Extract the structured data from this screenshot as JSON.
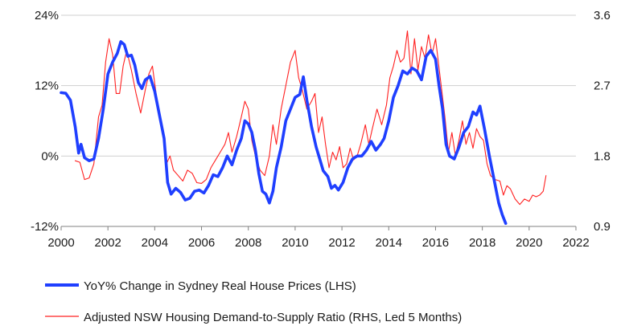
{
  "chart_data": {
    "type": "line",
    "title": "",
    "xlabel": "",
    "ylabel_left": "",
    "ylabel_right": "",
    "x_ticks": [
      "2000",
      "2002",
      "2004",
      "2006",
      "2008",
      "2010",
      "2012",
      "2014",
      "2016",
      "2018",
      "2020",
      "2022"
    ],
    "x_range": [
      2000,
      2022
    ],
    "y_left": {
      "ticks": [
        "24%",
        "12%",
        "0%",
        "-12%"
      ],
      "tick_values": [
        24,
        12,
        0,
        -12
      ],
      "range": [
        -12,
        24
      ]
    },
    "y_right": {
      "ticks": [
        "3.6",
        "2.7",
        "1.8",
        "0.9"
      ],
      "tick_values": [
        3.6,
        2.7,
        1.8,
        0.9
      ],
      "range": [
        0.9,
        3.6
      ]
    },
    "grid": "horizontal",
    "legend_position": "bottom-left",
    "series": [
      {
        "name": "YoY% Change in Sydney Real House Prices (LHS)",
        "axis": "left",
        "color": "#1f3fff",
        "points": [
          [
            2000.0,
            10.8
          ],
          [
            2000.2,
            10.7
          ],
          [
            2000.4,
            9.5
          ],
          [
            2000.6,
            5.0
          ],
          [
            2000.75,
            0.5
          ],
          [
            2000.85,
            2.0
          ],
          [
            2001.0,
            -0.3
          ],
          [
            2001.2,
            -0.8
          ],
          [
            2001.4,
            -0.5
          ],
          [
            2001.6,
            3.0
          ],
          [
            2001.8,
            8.0
          ],
          [
            2002.0,
            14.0
          ],
          [
            2002.2,
            16.0
          ],
          [
            2002.4,
            17.5
          ],
          [
            2002.55,
            19.5
          ],
          [
            2002.7,
            19.0
          ],
          [
            2002.85,
            17.0
          ],
          [
            2003.0,
            17.2
          ],
          [
            2003.15,
            15.5
          ],
          [
            2003.3,
            12.5
          ],
          [
            2003.45,
            11.5
          ],
          [
            2003.6,
            13.0
          ],
          [
            2003.8,
            13.6
          ],
          [
            2004.0,
            11.0
          ],
          [
            2004.2,
            7.0
          ],
          [
            2004.4,
            3.0
          ],
          [
            2004.55,
            -4.5
          ],
          [
            2004.7,
            -6.5
          ],
          [
            2004.9,
            -5.5
          ],
          [
            2005.1,
            -6.2
          ],
          [
            2005.3,
            -7.5
          ],
          [
            2005.5,
            -7.2
          ],
          [
            2005.7,
            -6.0
          ],
          [
            2005.9,
            -5.8
          ],
          [
            2006.1,
            -6.3
          ],
          [
            2006.3,
            -5.0
          ],
          [
            2006.5,
            -3.2
          ],
          [
            2006.7,
            -3.5
          ],
          [
            2006.9,
            -2.0
          ],
          [
            2007.1,
            0.0
          ],
          [
            2007.3,
            -1.5
          ],
          [
            2007.5,
            1.0
          ],
          [
            2007.7,
            3.0
          ],
          [
            2007.85,
            6.0
          ],
          [
            2008.0,
            5.5
          ],
          [
            2008.15,
            4.0
          ],
          [
            2008.3,
            1.0
          ],
          [
            2008.45,
            -3.0
          ],
          [
            2008.6,
            -6.0
          ],
          [
            2008.75,
            -6.5
          ],
          [
            2008.9,
            -8.0
          ],
          [
            2009.05,
            -6.0
          ],
          [
            2009.2,
            -2.0
          ],
          [
            2009.4,
            1.5
          ],
          [
            2009.6,
            6.0
          ],
          [
            2009.8,
            8.0
          ],
          [
            2010.0,
            10.0
          ],
          [
            2010.2,
            10.5
          ],
          [
            2010.35,
            13.5
          ],
          [
            2010.5,
            9.5
          ],
          [
            2010.7,
            5.0
          ],
          [
            2010.9,
            1.5
          ],
          [
            2011.05,
            -0.5
          ],
          [
            2011.2,
            -2.5
          ],
          [
            2011.4,
            -3.5
          ],
          [
            2011.55,
            -5.5
          ],
          [
            2011.7,
            -5.0
          ],
          [
            2011.85,
            -5.8
          ],
          [
            2012.05,
            -4.5
          ],
          [
            2012.25,
            -2.0
          ],
          [
            2012.45,
            -0.5
          ],
          [
            2012.65,
            0.0
          ],
          [
            2012.85,
            0.0
          ],
          [
            2013.05,
            1.0
          ],
          [
            2013.25,
            2.5
          ],
          [
            2013.45,
            1.0
          ],
          [
            2013.65,
            2.0
          ],
          [
            2013.8,
            3.0
          ],
          [
            2014.0,
            6.0
          ],
          [
            2014.2,
            10.0
          ],
          [
            2014.4,
            12.0
          ],
          [
            2014.6,
            14.5
          ],
          [
            2014.8,
            14.0
          ],
          [
            2015.0,
            15.0
          ],
          [
            2015.2,
            14.5
          ],
          [
            2015.4,
            13.0
          ],
          [
            2015.6,
            17.0
          ],
          [
            2015.8,
            18.0
          ],
          [
            2016.0,
            16.5
          ],
          [
            2016.15,
            12.0
          ],
          [
            2016.3,
            8.0
          ],
          [
            2016.45,
            2.0
          ],
          [
            2016.6,
            0.0
          ],
          [
            2016.8,
            -0.5
          ],
          [
            2017.0,
            1.5
          ],
          [
            2017.2,
            4.0
          ],
          [
            2017.4,
            5.0
          ],
          [
            2017.6,
            7.5
          ],
          [
            2017.75,
            7.0
          ],
          [
            2017.9,
            8.5
          ],
          [
            2018.1,
            4.5
          ],
          [
            2018.3,
            0.0
          ],
          [
            2018.5,
            -4.0
          ],
          [
            2018.7,
            -8.0
          ],
          [
            2018.85,
            -10.0
          ],
          [
            2019.0,
            -11.5
          ]
        ]
      },
      {
        "name": "Adjusted NSW Housing Demand-to-Supply Ratio (RHS, Led 5 Months)",
        "axis": "right",
        "color": "#ff2020",
        "points": [
          [
            2000.6,
            1.74
          ],
          [
            2000.8,
            1.72
          ],
          [
            2001.0,
            1.5
          ],
          [
            2001.2,
            1.52
          ],
          [
            2001.4,
            1.7
          ],
          [
            2001.6,
            2.3
          ],
          [
            2001.75,
            2.45
          ],
          [
            2001.9,
            3.0
          ],
          [
            2002.05,
            3.3
          ],
          [
            2002.2,
            3.1
          ],
          [
            2002.35,
            2.6
          ],
          [
            2002.5,
            2.6
          ],
          [
            2002.65,
            2.95
          ],
          [
            2002.8,
            3.15
          ],
          [
            2003.0,
            2.9
          ],
          [
            2003.2,
            2.6
          ],
          [
            2003.4,
            2.35
          ],
          [
            2003.6,
            2.65
          ],
          [
            2003.75,
            2.85
          ],
          [
            2003.9,
            2.95
          ],
          [
            2004.1,
            2.5
          ],
          [
            2004.3,
            2.2
          ],
          [
            2004.5,
            1.7
          ],
          [
            2004.65,
            1.8
          ],
          [
            2004.8,
            1.62
          ],
          [
            2005.0,
            1.55
          ],
          [
            2005.2,
            1.48
          ],
          [
            2005.4,
            1.62
          ],
          [
            2005.6,
            1.58
          ],
          [
            2005.8,
            1.46
          ],
          [
            2006.0,
            1.45
          ],
          [
            2006.2,
            1.5
          ],
          [
            2006.4,
            1.65
          ],
          [
            2006.6,
            1.75
          ],
          [
            2006.8,
            1.85
          ],
          [
            2007.0,
            1.95
          ],
          [
            2007.15,
            2.1
          ],
          [
            2007.3,
            1.85
          ],
          [
            2007.5,
            2.05
          ],
          [
            2007.7,
            2.3
          ],
          [
            2007.85,
            2.5
          ],
          [
            2008.0,
            2.4
          ],
          [
            2008.15,
            2.0
          ],
          [
            2008.3,
            1.8
          ],
          [
            2008.5,
            1.62
          ],
          [
            2008.7,
            1.55
          ],
          [
            2008.9,
            1.8
          ],
          [
            2009.05,
            2.2
          ],
          [
            2009.2,
            1.95
          ],
          [
            2009.4,
            2.4
          ],
          [
            2009.6,
            2.7
          ],
          [
            2009.8,
            3.0
          ],
          [
            2010.0,
            3.15
          ],
          [
            2010.15,
            2.8
          ],
          [
            2010.3,
            2.65
          ],
          [
            2010.5,
            2.4
          ],
          [
            2010.7,
            2.5
          ],
          [
            2010.85,
            2.6
          ],
          [
            2011.0,
            2.1
          ],
          [
            2011.15,
            2.3
          ],
          [
            2011.3,
            1.95
          ],
          [
            2011.45,
            1.65
          ],
          [
            2011.6,
            1.85
          ],
          [
            2011.75,
            1.75
          ],
          [
            2011.9,
            1.92
          ],
          [
            2012.05,
            1.65
          ],
          [
            2012.2,
            1.7
          ],
          [
            2012.35,
            1.9
          ],
          [
            2012.5,
            1.75
          ],
          [
            2012.65,
            1.8
          ],
          [
            2012.8,
            1.95
          ],
          [
            2013.0,
            2.2
          ],
          [
            2013.15,
            1.95
          ],
          [
            2013.3,
            2.15
          ],
          [
            2013.5,
            2.4
          ],
          [
            2013.7,
            2.2
          ],
          [
            2013.9,
            2.45
          ],
          [
            2014.05,
            2.8
          ],
          [
            2014.2,
            2.95
          ],
          [
            2014.35,
            3.15
          ],
          [
            2014.5,
            3.0
          ],
          [
            2014.65,
            3.05
          ],
          [
            2014.8,
            3.4
          ],
          [
            2014.95,
            2.85
          ],
          [
            2015.1,
            3.3
          ],
          [
            2015.25,
            2.9
          ],
          [
            2015.4,
            3.2
          ],
          [
            2015.55,
            3.05
          ],
          [
            2015.7,
            3.35
          ],
          [
            2015.85,
            3.1
          ],
          [
            2016.0,
            3.3
          ],
          [
            2016.2,
            2.8
          ],
          [
            2016.4,
            2.3
          ],
          [
            2016.55,
            1.85
          ],
          [
            2016.7,
            2.1
          ],
          [
            2016.85,
            1.8
          ],
          [
            2017.0,
            2.0
          ],
          [
            2017.15,
            2.25
          ],
          [
            2017.3,
            1.95
          ],
          [
            2017.45,
            2.1
          ],
          [
            2017.6,
            1.9
          ],
          [
            2017.75,
            2.15
          ],
          [
            2017.9,
            2.05
          ],
          [
            2018.05,
            2.0
          ],
          [
            2018.2,
            1.7
          ],
          [
            2018.35,
            1.55
          ],
          [
            2018.55,
            1.5
          ],
          [
            2018.75,
            1.48
          ],
          [
            2018.9,
            1.3
          ],
          [
            2019.05,
            1.42
          ],
          [
            2019.2,
            1.38
          ],
          [
            2019.4,
            1.25
          ],
          [
            2019.6,
            1.18
          ],
          [
            2019.8,
            1.25
          ],
          [
            2020.0,
            1.22
          ],
          [
            2020.15,
            1.3
          ],
          [
            2020.3,
            1.28
          ],
          [
            2020.45,
            1.3
          ],
          [
            2020.6,
            1.35
          ],
          [
            2020.72,
            1.55
          ]
        ]
      }
    ]
  }
}
